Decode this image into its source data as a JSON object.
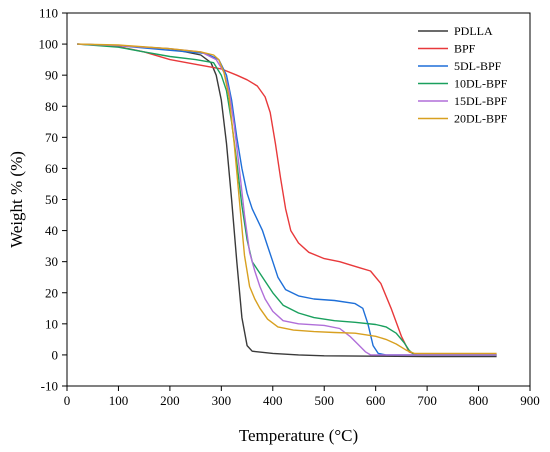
{
  "chart_data": {
    "type": "line",
    "title": "",
    "xlabel": "Temperature (°C)",
    "ylabel": "Weight % (%)",
    "xlim": [
      0,
      900
    ],
    "ylim": [
      -10,
      110
    ],
    "xticks": [
      0,
      100,
      200,
      300,
      400,
      500,
      600,
      700,
      800,
      900
    ],
    "yticks": [
      -10,
      0,
      10,
      20,
      30,
      40,
      50,
      60,
      70,
      80,
      90,
      100,
      110
    ],
    "grid": false,
    "legend": "top-right",
    "series": [
      {
        "name": "PDLLA",
        "color": "#3a3a3a",
        "points": [
          [
            20,
            100
          ],
          [
            100,
            99.5
          ],
          [
            200,
            98.5
          ],
          [
            260,
            96.5
          ],
          [
            280,
            94
          ],
          [
            290,
            90
          ],
          [
            300,
            82
          ],
          [
            310,
            68
          ],
          [
            320,
            50
          ],
          [
            330,
            30
          ],
          [
            340,
            12
          ],
          [
            350,
            3
          ],
          [
            360,
            1.2
          ],
          [
            400,
            0.5
          ],
          [
            450,
            0
          ],
          [
            500,
            -0.3
          ],
          [
            600,
            -0.4
          ],
          [
            700,
            -0.5
          ],
          [
            835,
            -0.5
          ]
        ]
      },
      {
        "name": "BPF",
        "color": "#e8393b",
        "points": [
          [
            20,
            100
          ],
          [
            100,
            99.2
          ],
          [
            150,
            97.5
          ],
          [
            200,
            95
          ],
          [
            250,
            93.5
          ],
          [
            300,
            92
          ],
          [
            330,
            90
          ],
          [
            350,
            88.5
          ],
          [
            370,
            86.5
          ],
          [
            385,
            83
          ],
          [
            395,
            78
          ],
          [
            405,
            68
          ],
          [
            415,
            57
          ],
          [
            425,
            47
          ],
          [
            435,
            40
          ],
          [
            450,
            36
          ],
          [
            470,
            33
          ],
          [
            500,
            31
          ],
          [
            530,
            30
          ],
          [
            550,
            29
          ],
          [
            570,
            28
          ],
          [
            590,
            27
          ],
          [
            610,
            23
          ],
          [
            630,
            15
          ],
          [
            650,
            6
          ],
          [
            665,
            1
          ],
          [
            680,
            0
          ],
          [
            835,
            0
          ]
        ]
      },
      {
        "name": "5DL-BPF",
        "color": "#1e6fd8",
        "points": [
          [
            20,
            100
          ],
          [
            100,
            99.5
          ],
          [
            200,
            98
          ],
          [
            270,
            97
          ],
          [
            295,
            95
          ],
          [
            310,
            90
          ],
          [
            320,
            82
          ],
          [
            330,
            70
          ],
          [
            340,
            60
          ],
          [
            350,
            52
          ],
          [
            360,
            47
          ],
          [
            380,
            40
          ],
          [
            390,
            35
          ],
          [
            400,
            30
          ],
          [
            410,
            25
          ],
          [
            425,
            21
          ],
          [
            450,
            19
          ],
          [
            480,
            18
          ],
          [
            520,
            17.5
          ],
          [
            560,
            16.5
          ],
          [
            575,
            15
          ],
          [
            585,
            10
          ],
          [
            595,
            3
          ],
          [
            605,
            0.5
          ],
          [
            620,
            0
          ],
          [
            835,
            0
          ]
        ]
      },
      {
        "name": "10DL-BPF",
        "color": "#1aa05e",
        "points": [
          [
            20,
            100
          ],
          [
            100,
            99
          ],
          [
            150,
            97.5
          ],
          [
            200,
            96
          ],
          [
            250,
            95
          ],
          [
            285,
            94
          ],
          [
            300,
            90
          ],
          [
            310,
            85
          ],
          [
            320,
            75
          ],
          [
            330,
            62
          ],
          [
            340,
            48
          ],
          [
            350,
            37
          ],
          [
            360,
            30
          ],
          [
            380,
            25
          ],
          [
            400,
            20
          ],
          [
            420,
            16
          ],
          [
            450,
            13.5
          ],
          [
            480,
            12
          ],
          [
            520,
            11
          ],
          [
            560,
            10.5
          ],
          [
            600,
            9.8
          ],
          [
            620,
            9
          ],
          [
            640,
            7
          ],
          [
            655,
            4
          ],
          [
            665,
            1.5
          ],
          [
            675,
            0
          ],
          [
            835,
            0
          ]
        ]
      },
      {
        "name": "15DL-BPF",
        "color": "#b06fd9",
        "points": [
          [
            20,
            100
          ],
          [
            100,
            99.5
          ],
          [
            200,
            98.5
          ],
          [
            260,
            97.5
          ],
          [
            290,
            95
          ],
          [
            305,
            91
          ],
          [
            315,
            85
          ],
          [
            325,
            74
          ],
          [
            335,
            60
          ],
          [
            345,
            45
          ],
          [
            355,
            33
          ],
          [
            365,
            27
          ],
          [
            375,
            22
          ],
          [
            385,
            18
          ],
          [
            400,
            14
          ],
          [
            420,
            11
          ],
          [
            450,
            10
          ],
          [
            500,
            9.5
          ],
          [
            530,
            8.5
          ],
          [
            550,
            6
          ],
          [
            565,
            3.5
          ],
          [
            580,
            1
          ],
          [
            590,
            0
          ],
          [
            700,
            0
          ],
          [
            835,
            0
          ]
        ]
      },
      {
        "name": "20DL-BPF",
        "color": "#d8a020",
        "points": [
          [
            20,
            100
          ],
          [
            100,
            99.7
          ],
          [
            200,
            98.5
          ],
          [
            260,
            97.5
          ],
          [
            285,
            96.5
          ],
          [
            295,
            95
          ],
          [
            305,
            91
          ],
          [
            315,
            83
          ],
          [
            325,
            68
          ],
          [
            335,
            50
          ],
          [
            345,
            32
          ],
          [
            355,
            22
          ],
          [
            365,
            18
          ],
          [
            375,
            15
          ],
          [
            390,
            11.5
          ],
          [
            410,
            9
          ],
          [
            440,
            8
          ],
          [
            480,
            7.5
          ],
          [
            520,
            7.2
          ],
          [
            560,
            7
          ],
          [
            600,
            6
          ],
          [
            620,
            5
          ],
          [
            640,
            3.5
          ],
          [
            660,
            1.5
          ],
          [
            675,
            0.5
          ],
          [
            700,
            0.5
          ],
          [
            835,
            0.5
          ]
        ]
      }
    ]
  }
}
